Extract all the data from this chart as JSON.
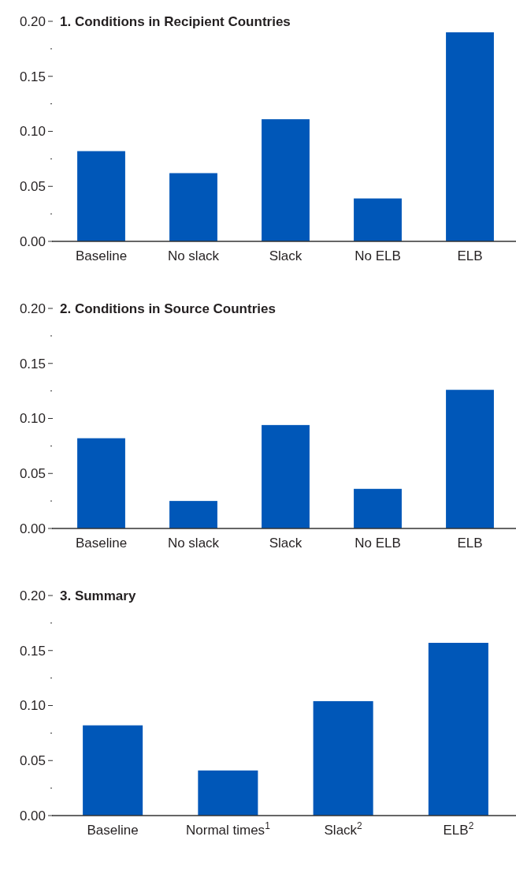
{
  "chart_data": [
    {
      "type": "bar",
      "title": "1. Conditions in Recipient Countries",
      "categories": [
        "Baseline",
        "No slack",
        "Slack",
        "No ELB",
        "ELB"
      ],
      "values": [
        0.082,
        0.062,
        0.111,
        0.039,
        0.19
      ],
      "color": "#0057b8",
      "ylim": [
        0,
        0.2
      ],
      "yticks": [
        {
          "value": 0,
          "label": "0.00"
        },
        {
          "value": 0.025,
          "label": null
        },
        {
          "value": 0.05,
          "label": "0.05"
        },
        {
          "value": 0.075,
          "label": null
        },
        {
          "value": 0.1,
          "label": "0.10"
        },
        {
          "value": 0.125,
          "label": null
        },
        {
          "value": 0.15,
          "label": "0.15"
        },
        {
          "value": 0.175,
          "label": null
        },
        {
          "value": 0.2,
          "label": "0.20"
        }
      ]
    },
    {
      "type": "bar",
      "title": "2. Conditions in Source Countries",
      "categories": [
        "Baseline",
        "No slack",
        "Slack",
        "No ELB",
        "ELB"
      ],
      "values": [
        0.082,
        0.025,
        0.094,
        0.036,
        0.126
      ],
      "color": "#0057b8",
      "ylim": [
        0,
        0.2
      ],
      "yticks": [
        {
          "value": 0,
          "label": "0.00"
        },
        {
          "value": 0.025,
          "label": null
        },
        {
          "value": 0.05,
          "label": "0.05"
        },
        {
          "value": 0.075,
          "label": null
        },
        {
          "value": 0.1,
          "label": "0.10"
        },
        {
          "value": 0.125,
          "label": null
        },
        {
          "value": 0.15,
          "label": "0.15"
        },
        {
          "value": 0.175,
          "label": null
        },
        {
          "value": 0.2,
          "label": "0.20"
        }
      ]
    },
    {
      "type": "bar",
      "title": "3. Summary",
      "categories": [
        "Baseline",
        "Normal times$^{1}$",
        "Slack$^{2}$",
        "ELB$^{2}$"
      ],
      "values": [
        0.082,
        0.041,
        0.104,
        0.157
      ],
      "color": "#0057b8",
      "ylim": [
        0,
        0.2
      ],
      "yticks": [
        {
          "value": 0,
          "label": "0.00"
        },
        {
          "value": 0.025,
          "label": null
        },
        {
          "value": 0.05,
          "label": "0.05"
        },
        {
          "value": 0.075,
          "label": null
        },
        {
          "value": 0.1,
          "label": "0.10"
        },
        {
          "value": 0.125,
          "label": null
        },
        {
          "value": 0.15,
          "label": "0.15"
        },
        {
          "value": 0.175,
          "label": null
        },
        {
          "value": 0.2,
          "label": "0.20"
        }
      ]
    }
  ]
}
